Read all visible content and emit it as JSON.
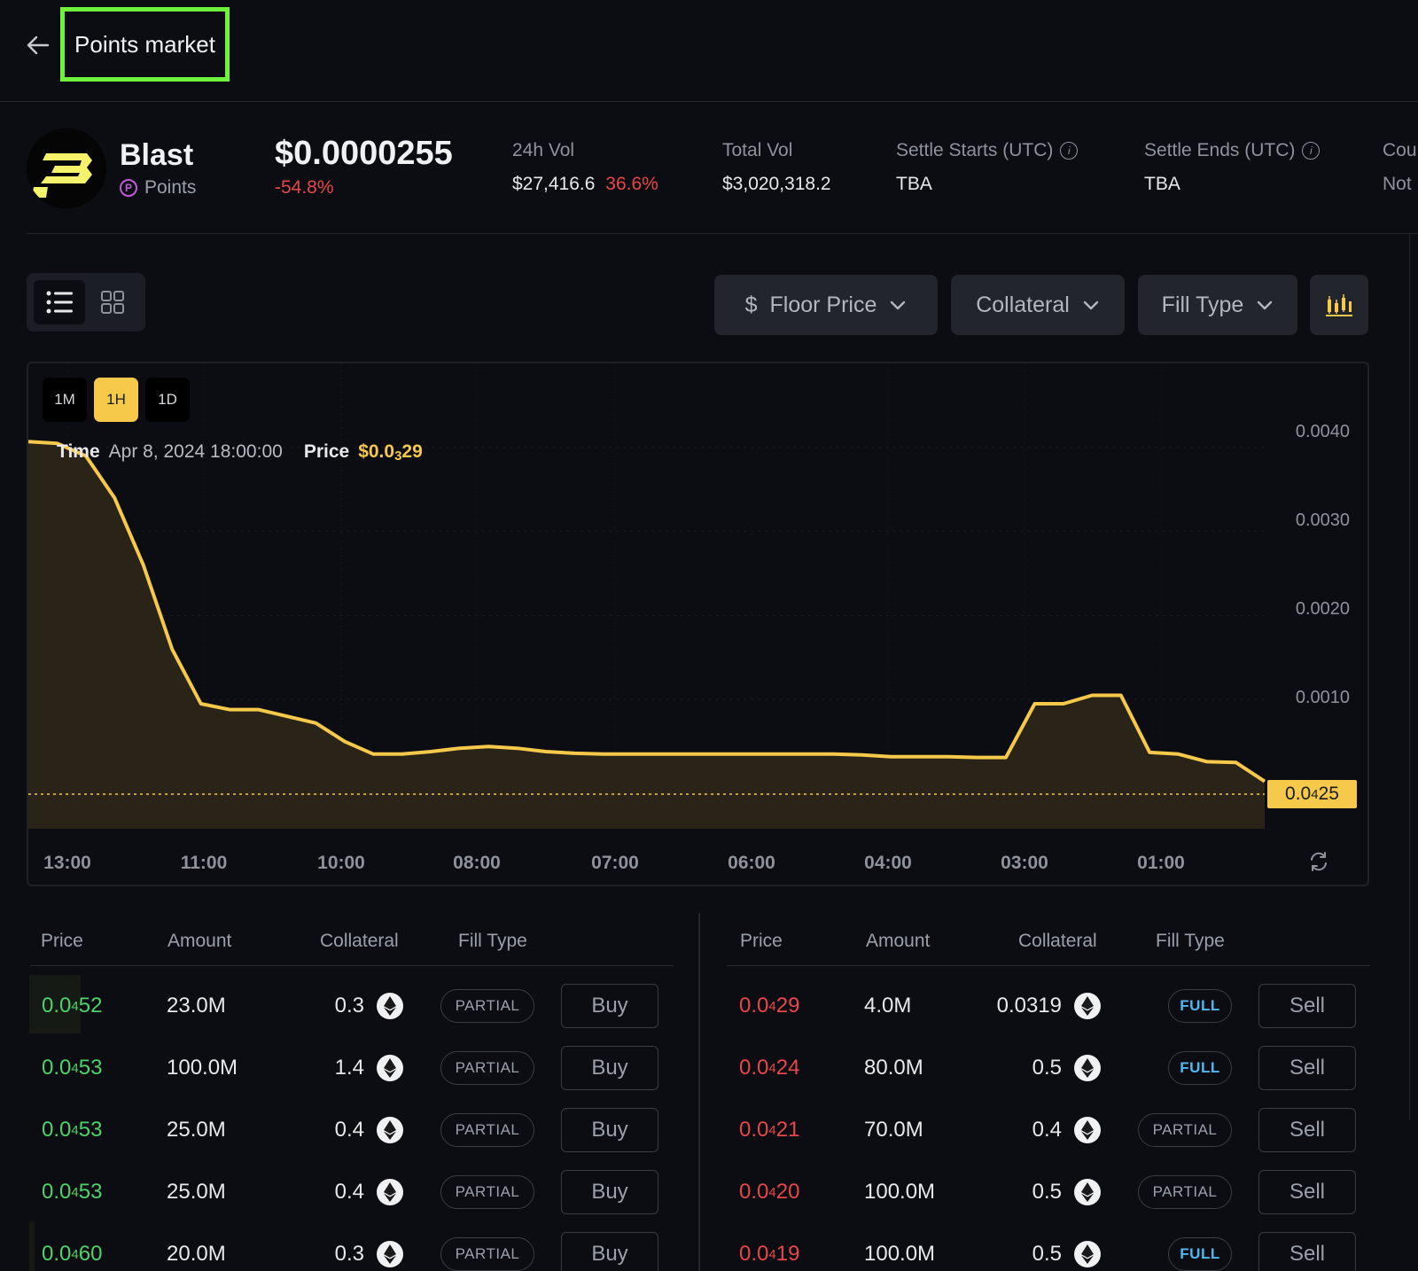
{
  "header": {
    "title": "Points market"
  },
  "token": {
    "name": "Blast",
    "type": "Points",
    "price": "$0.0000255",
    "change": "-54.8%"
  },
  "stats": [
    {
      "label": "24h Vol",
      "value": "$27,416.6",
      "extra": "36.6%",
      "info": false
    },
    {
      "label": "Total Vol",
      "value": "$3,020,318.2",
      "extra": "",
      "info": false
    },
    {
      "label": "Settle Starts (UTC)",
      "value": "TBA",
      "extra": "",
      "info": true
    },
    {
      "label": "Settle Ends (UTC)",
      "value": "TBA",
      "extra": "",
      "info": true
    },
    {
      "label": "Cou",
      "value": "Not",
      "extra": "",
      "info": false
    }
  ],
  "filters": {
    "currency_symbol": "$",
    "floor_price": "Floor Price",
    "collateral": "Collateral",
    "fill_type": "Fill Type"
  },
  "chart": {
    "ranges": [
      "1M",
      "1H",
      "1D"
    ],
    "active_range": "1H",
    "tooltip": {
      "time_label": "Time",
      "time_value": "Apr 8, 2024 18:00:00",
      "price_label": "Price",
      "price_prefix": "$0.0",
      "price_sub": "3",
      "price_suffix": "29"
    },
    "y_ticks": [
      "0.0040",
      "0.0030",
      "0.0020",
      "0.0010"
    ],
    "x_ticks": [
      "13:00",
      "11:00",
      "10:00",
      "08:00",
      "07:00",
      "06:00",
      "04:00",
      "03:00",
      "01:00"
    ],
    "last_price": {
      "prefix": "0.0",
      "sub": "4",
      "suffix": "25"
    },
    "line_color": "#f6c94b"
  },
  "chart_data": {
    "type": "area",
    "ylim": [
      0,
      0.0042
    ],
    "x_labels": [
      "13:00",
      "11:00",
      "10:00",
      "08:00",
      "07:00",
      "06:00",
      "04:00",
      "03:00",
      "01:00"
    ],
    "values": [
      0.00407,
      0.00405,
      0.0039,
      0.0034,
      0.0026,
      0.0016,
      0.00095,
      0.00088,
      0.00088,
      0.0008,
      0.00072,
      0.0005,
      0.00035,
      0.00035,
      0.00038,
      0.00042,
      0.00044,
      0.00042,
      0.00038,
      0.00036,
      0.00035,
      0.00035,
      0.00035,
      0.00035,
      0.00035,
      0.00035,
      0.00035,
      0.00035,
      0.00035,
      0.00034,
      0.00032,
      0.00032,
      0.00032,
      0.00031,
      0.00031,
      0.00095,
      0.00095,
      0.00105,
      0.00105,
      0.00037,
      0.00035,
      0.00026,
      0.00025,
      2.5e-05
    ],
    "series_color": "#f6c94b"
  },
  "orderbook": {
    "buy_headers": [
      "Price",
      "Amount",
      "Collateral",
      "Fill Type"
    ],
    "sell_headers": [
      "Price",
      "Amount",
      "Collateral",
      "Fill Type"
    ],
    "buy_label": "Buy",
    "sell_label": "Sell",
    "buys": [
      {
        "prefix": "0.0",
        "sub": "4",
        "suffix": "52",
        "amount": "23.0M",
        "collateral": "0.3",
        "fill": "PARTIAL"
      },
      {
        "prefix": "0.0",
        "sub": "4",
        "suffix": "53",
        "amount": "100.0M",
        "collateral": "1.4",
        "fill": "PARTIAL"
      },
      {
        "prefix": "0.0",
        "sub": "4",
        "suffix": "53",
        "amount": "25.0M",
        "collateral": "0.4",
        "fill": "PARTIAL"
      },
      {
        "prefix": "0.0",
        "sub": "4",
        "suffix": "53",
        "amount": "25.0M",
        "collateral": "0.4",
        "fill": "PARTIAL"
      },
      {
        "prefix": "0.0",
        "sub": "4",
        "suffix": "60",
        "amount": "20.0M",
        "collateral": "0.3",
        "fill": "PARTIAL"
      }
    ],
    "sells": [
      {
        "prefix": "0.0",
        "sub": "4",
        "suffix": "29",
        "amount": "4.0M",
        "collateral": "0.0319",
        "fill": "FULL"
      },
      {
        "prefix": "0.0",
        "sub": "4",
        "suffix": "24",
        "amount": "80.0M",
        "collateral": "0.5",
        "fill": "FULL"
      },
      {
        "prefix": "0.0",
        "sub": "4",
        "suffix": "21",
        "amount": "70.0M",
        "collateral": "0.4",
        "fill": "PARTIAL"
      },
      {
        "prefix": "0.0",
        "sub": "4",
        "suffix": "20",
        "amount": "100.0M",
        "collateral": "0.5",
        "fill": "PARTIAL"
      },
      {
        "prefix": "0.0",
        "sub": "4",
        "suffix": "19",
        "amount": "100.0M",
        "collateral": "0.5",
        "fill": "FULL"
      }
    ]
  }
}
